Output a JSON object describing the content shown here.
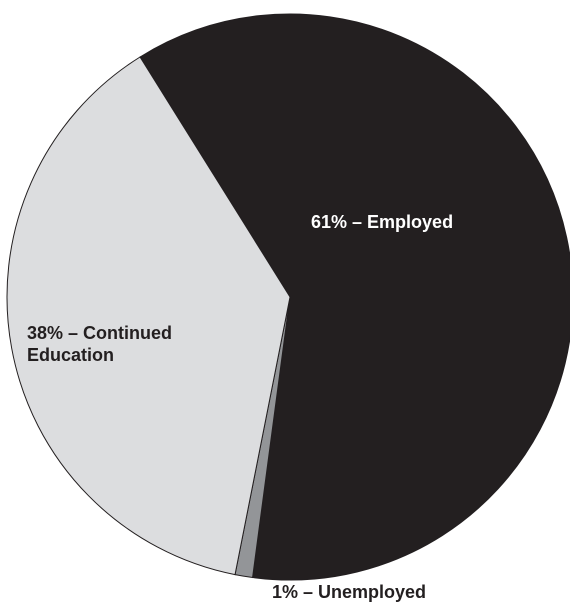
{
  "chart_data": {
    "type": "pie",
    "slices": [
      {
        "key": "employed",
        "value": 61,
        "color": "#231f20",
        "label_lines": [
          "61% – Employed"
        ],
        "label_color": "#ffffff"
      },
      {
        "key": "unemployed",
        "value": 1,
        "color": "#939598",
        "label_lines": [
          "1% – Unemployed"
        ],
        "label_color": "#231f20"
      },
      {
        "key": "continued-education",
        "value": 38,
        "color": "#dcdddf",
        "label_lines": [
          "38% – Continued",
          "Education"
        ],
        "label_color": "#231f20"
      }
    ]
  }
}
